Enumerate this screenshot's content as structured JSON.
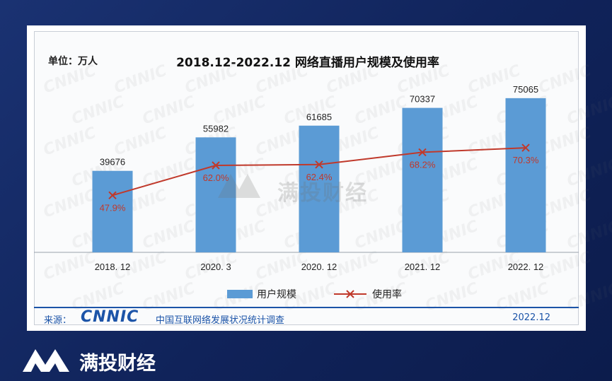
{
  "unit_label": "单位：万人",
  "chart_data": {
    "type": "bar",
    "title": "2018.12-2022.12 网络直播用户规模及使用率",
    "categories": [
      "2018. 12",
      "2020. 3",
      "2020. 12",
      "2021. 12",
      "2022. 12"
    ],
    "series": [
      {
        "name": "用户规模",
        "type": "bar",
        "values": [
          39676,
          55982,
          61685,
          70337,
          75065
        ],
        "color": "#5b9bd5"
      },
      {
        "name": "使用率",
        "type": "line",
        "values": [
          47.9,
          62.0,
          62.4,
          68.2,
          70.3
        ],
        "labels": [
          "47.9%",
          "62.0%",
          "62.4%",
          "68.2%",
          "70.3%"
        ],
        "color": "#c0392b"
      }
    ],
    "ylim": [
      0,
      85000
    ],
    "y2lim": [
      0,
      100
    ],
    "legend": "bottom",
    "grid": false
  },
  "footer": {
    "source_label": "来源：",
    "logo_text": "CNNIC",
    "org": "中国互联网络发展状况统计调查",
    "date": "2022.12"
  },
  "watermark": {
    "text": "CNNIC",
    "center_text": "满投财经"
  },
  "brand": {
    "name": "满投财经"
  }
}
